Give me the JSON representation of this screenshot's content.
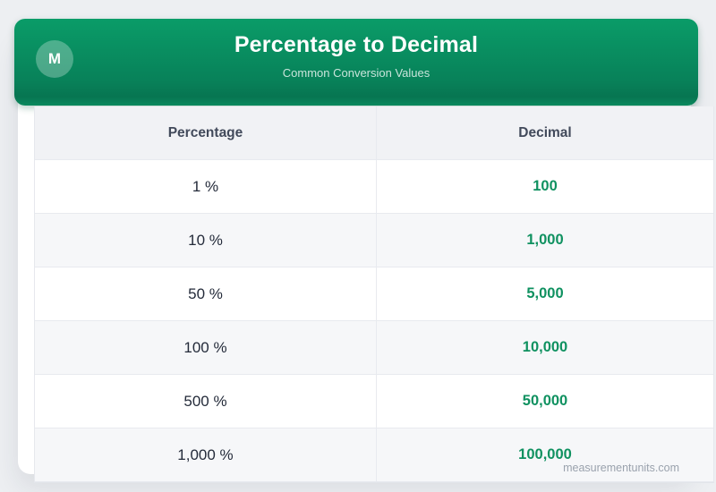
{
  "page": {
    "background_color": "#edeff2",
    "accent_green": "#0a9c68"
  },
  "header": {
    "badge_letter": "M",
    "title": "Percentage to Decimal",
    "subtitle": "Common Conversion Values",
    "gradient_top": "#0a9c68",
    "gradient_bottom": "#077551",
    "title_color": "#ffffff"
  },
  "table": {
    "columns": [
      "Percentage",
      "Decimal"
    ],
    "rows": [
      {
        "percentage": "1 %",
        "decimal": "100"
      },
      {
        "percentage": "10 %",
        "decimal": "1,000"
      },
      {
        "percentage": "50 %",
        "decimal": "5,000"
      },
      {
        "percentage": "100 %",
        "decimal": "10,000"
      },
      {
        "percentage": "500 %",
        "decimal": "50,000"
      },
      {
        "percentage": "1,000 %",
        "decimal": "100,000"
      }
    ],
    "header_bg": "#f1f2f5",
    "stripe_bg": "#f6f7f9",
    "value_color": "#0f9160",
    "label_color": "#242b3a"
  },
  "footer": {
    "watermark": "measurementunits.com"
  },
  "chart_data": {
    "type": "table",
    "title": "Percentage to Decimal",
    "subtitle": "Common Conversion Values",
    "columns": [
      "Percentage",
      "Decimal"
    ],
    "rows": [
      [
        "1 %",
        "100"
      ],
      [
        "10 %",
        "1,000"
      ],
      [
        "50 %",
        "5,000"
      ],
      [
        "100 %",
        "10,000"
      ],
      [
        "500 %",
        "50,000"
      ],
      [
        "1,000 %",
        "100,000"
      ]
    ],
    "notes": "Conversion card; decimal values shown in green bold, percentages in dark text, alternating row shading."
  }
}
